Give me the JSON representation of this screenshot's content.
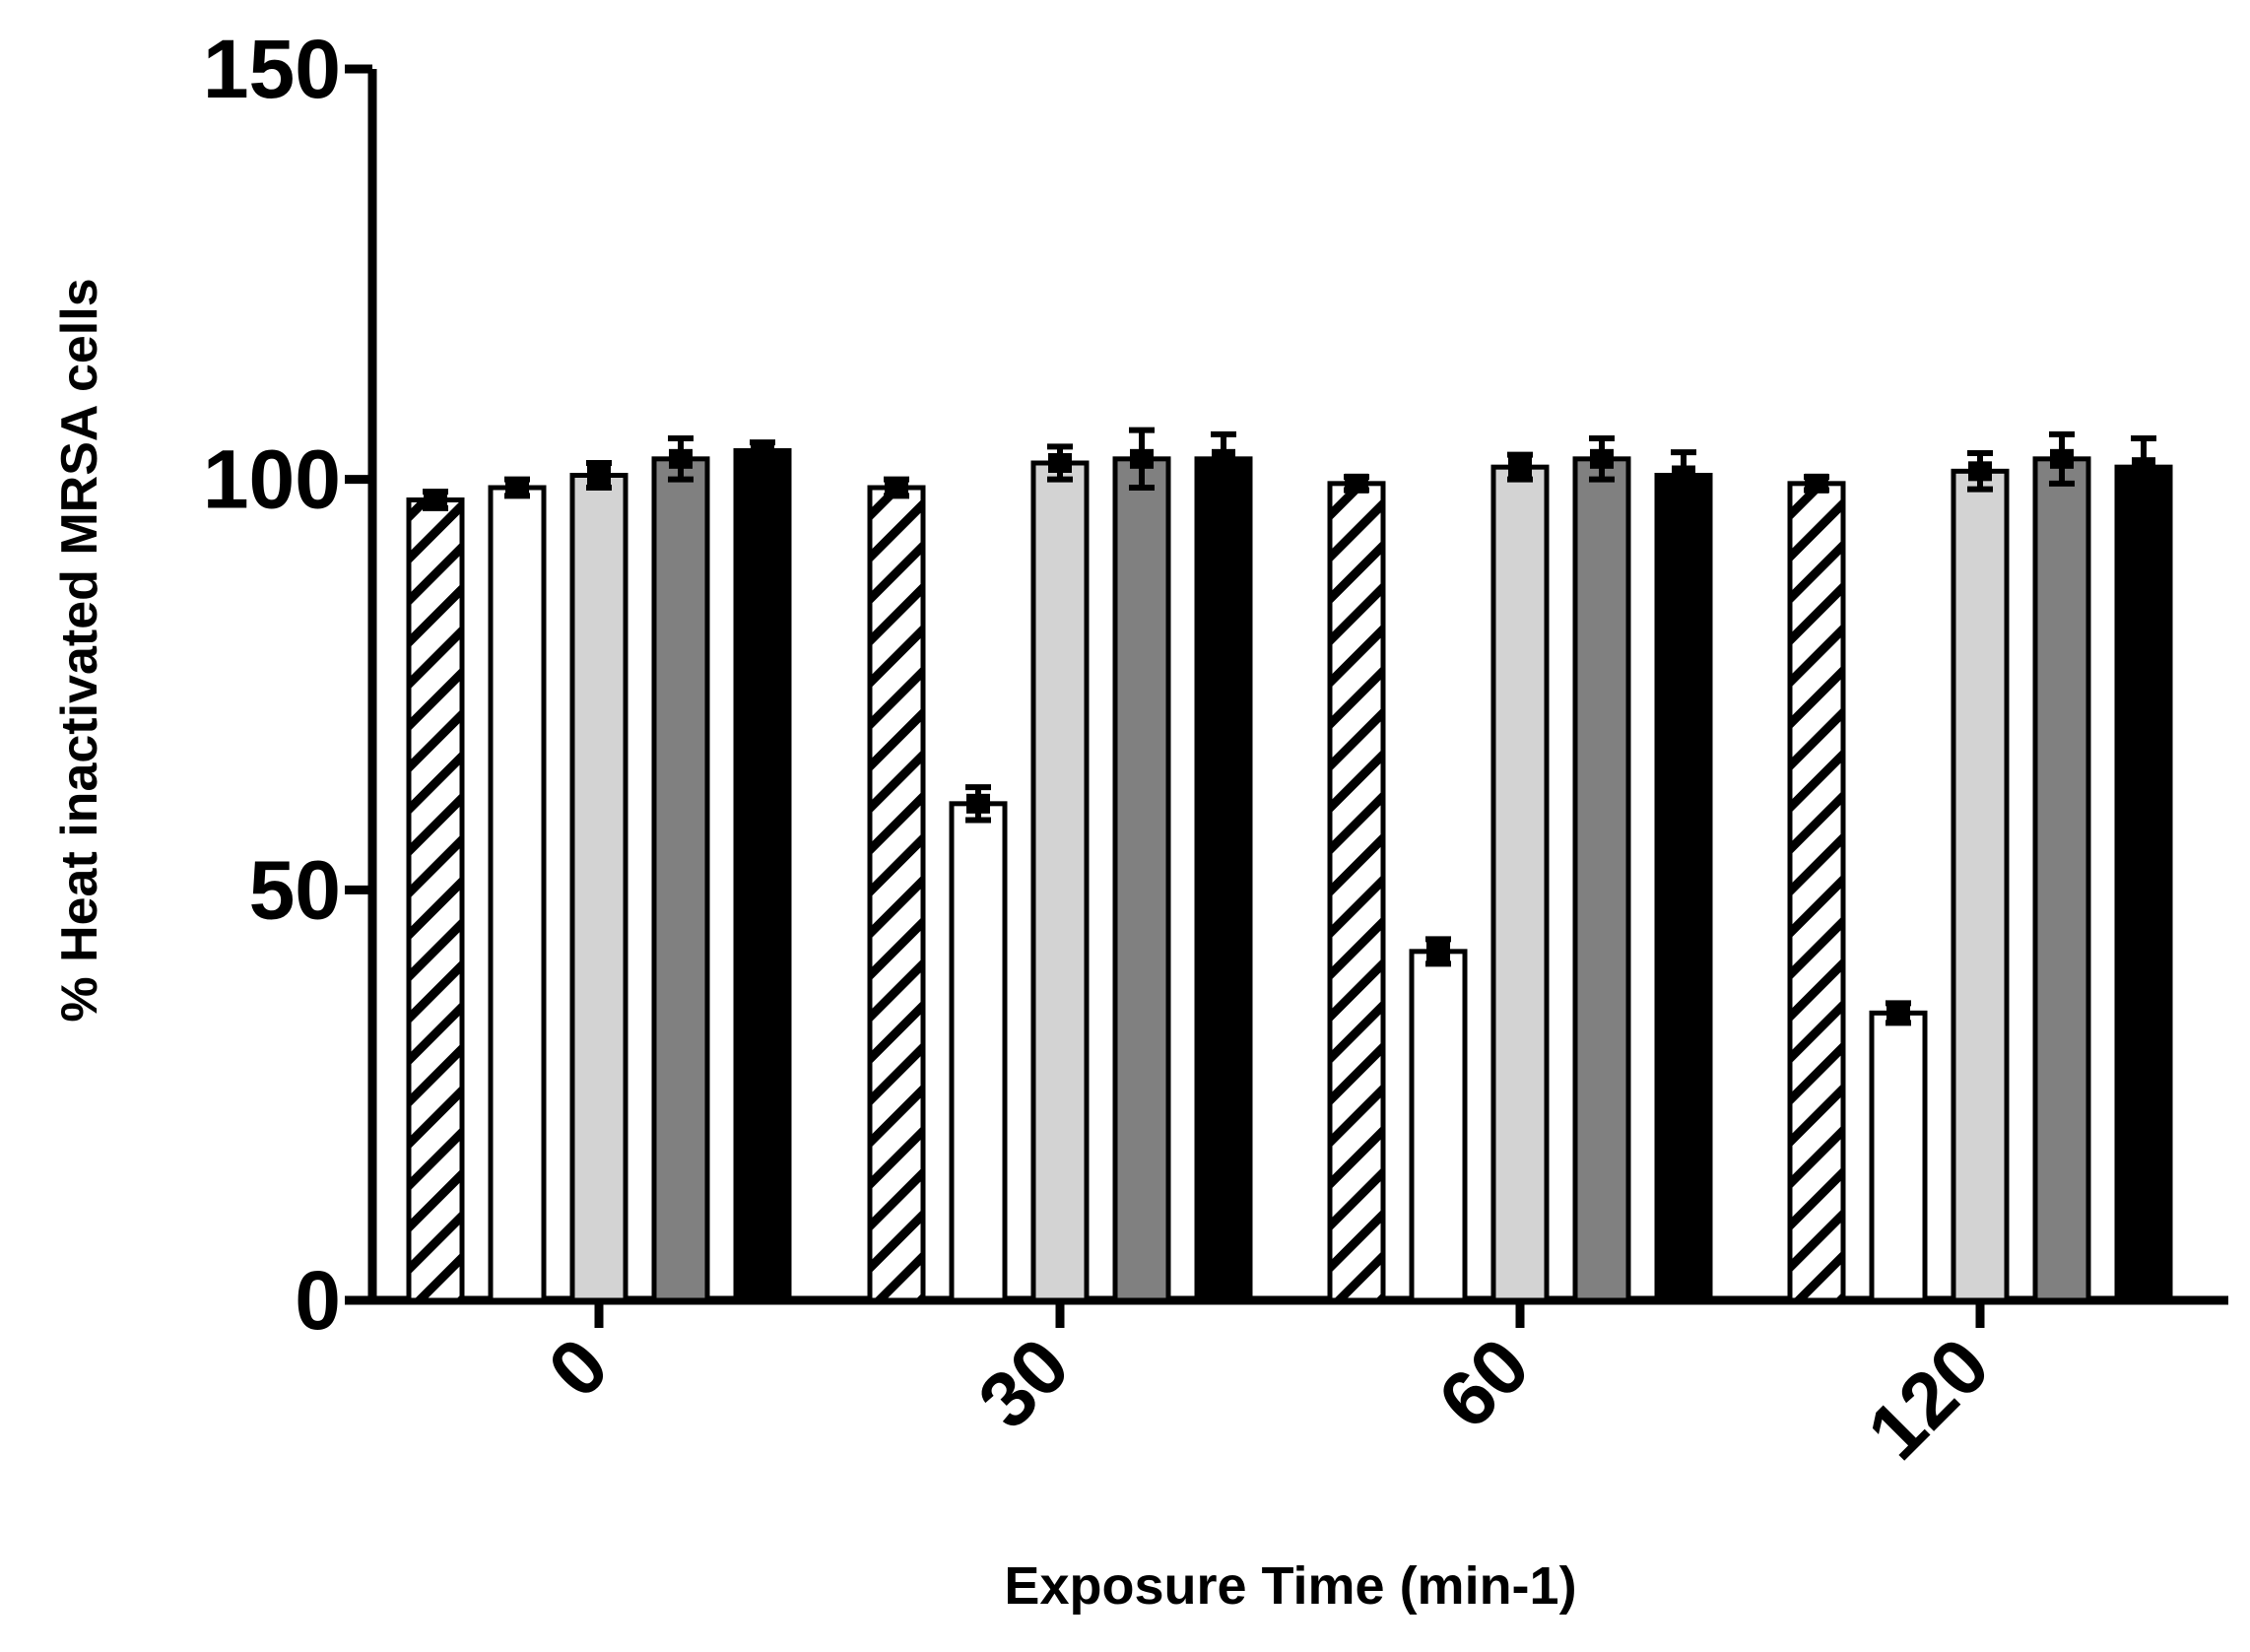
{
  "chart_data": {
    "type": "bar",
    "title": "",
    "xlabel": "Exposure Time (min-1)",
    "ylabel": "% Heat inactivated MRSA cells",
    "ylim": [
      0,
      150
    ],
    "yticks": [
      0,
      50,
      100,
      150
    ],
    "categories": [
      "0",
      "30",
      "60",
      "120"
    ],
    "grid": false,
    "legend": "none",
    "series": [
      {
        "fill": "hatch-diagonal",
        "values": [
          97.5,
          99,
          99.5,
          99.5
        ],
        "errors": [
          1.0,
          1.0,
          0.8,
          0.8
        ]
      },
      {
        "fill": "#ffffff",
        "values": [
          99,
          60.5,
          42.5,
          35
        ],
        "errors": [
          1.0,
          2.0,
          1.5,
          1.2
        ]
      },
      {
        "fill": "#d3d3d3",
        "values": [
          100.5,
          102,
          101.5,
          101
        ],
        "errors": [
          1.5,
          2.0,
          1.5,
          2.2
        ]
      },
      {
        "fill": "#808080",
        "values": [
          102.5,
          102.5,
          102.5,
          102.5
        ],
        "errors": [
          2.5,
          3.5,
          2.5,
          3.0
        ]
      },
      {
        "fill": "#000000",
        "values": [
          103.5,
          102.5,
          100.5,
          101.5
        ],
        "errors": [
          1.0,
          3.0,
          2.8,
          3.5
        ]
      }
    ]
  }
}
